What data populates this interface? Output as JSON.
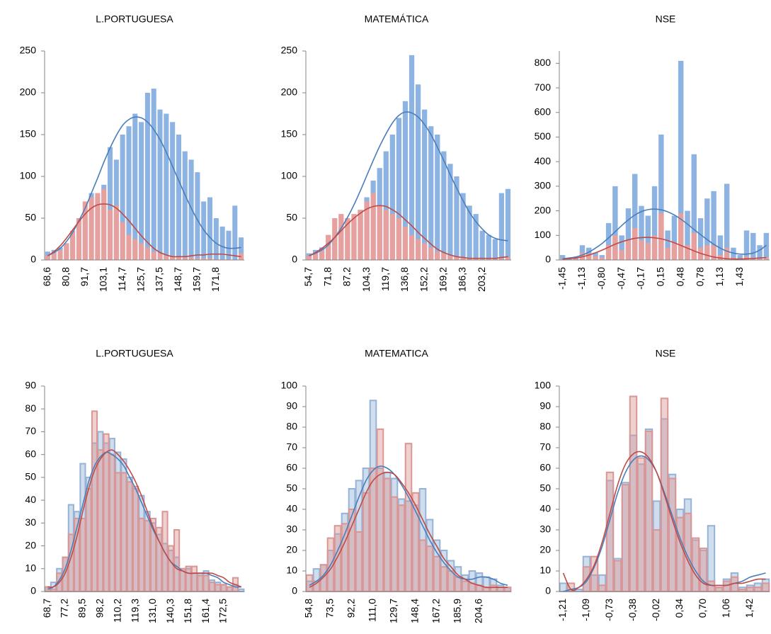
{
  "chart_data": [
    {
      "type": "bar",
      "title": "L.PORTUGUESA",
      "bar_style": "solid",
      "categories": [
        "68,6",
        null,
        null,
        "80,8",
        null,
        null,
        "91,7",
        null,
        null,
        "103,1",
        null,
        null,
        "114,7",
        null,
        null,
        "125,7",
        null,
        null,
        "137,5",
        null,
        null,
        "148,7",
        null,
        null,
        "159,7",
        null,
        null,
        "171,8",
        null,
        null,
        null,
        null
      ],
      "series": [
        {
          "color": "#8db3e2",
          "values": [
            10,
            12,
            15,
            20,
            28,
            40,
            50,
            80,
            75,
            90,
            135,
            120,
            150,
            160,
            175,
            165,
            200,
            205,
            180,
            175,
            165,
            150,
            130,
            120,
            105,
            70,
            75,
            50,
            40,
            35,
            65,
            27
          ]
        },
        {
          "color": "#e6a09e",
          "values": [
            5,
            8,
            12,
            20,
            35,
            50,
            70,
            75,
            80,
            85,
            60,
            65,
            45,
            30,
            25,
            20,
            15,
            10,
            8,
            5,
            5,
            4,
            3,
            3,
            2,
            2,
            2,
            1,
            1,
            1,
            0,
            8
          ]
        }
      ],
      "curves": [
        {
          "color": "#4a7ebb",
          "values": [
            5,
            9,
            14,
            22,
            33,
            47,
            62,
            80,
            98,
            117,
            134,
            149,
            161,
            168,
            171,
            170,
            165,
            156,
            144,
            129,
            112,
            95,
            78,
            62,
            48,
            36,
            27,
            20,
            16,
            14,
            14,
            15
          ]
        },
        {
          "color": "#be4b48",
          "values": [
            5,
            10,
            17,
            26,
            36,
            46,
            55,
            62,
            66,
            67,
            66,
            62,
            55,
            47,
            38,
            29,
            21,
            14,
            9,
            6,
            4,
            4,
            4,
            5,
            6,
            6,
            7,
            7,
            7,
            6,
            5,
            4
          ]
        }
      ],
      "ylim": [
        0,
        250
      ],
      "yticks": [
        0,
        50,
        100,
        150,
        200,
        250
      ]
    },
    {
      "type": "bar",
      "title": "MATEMÁTICA",
      "bar_style": "solid",
      "categories": [
        "54,7",
        null,
        null,
        "71,8",
        null,
        null,
        "87,2",
        null,
        null,
        "104,3",
        null,
        null,
        "119,7",
        null,
        null,
        "136,8",
        null,
        null,
        "152,2",
        null,
        null,
        "169,2",
        null,
        null,
        "186,3",
        null,
        null,
        "203,2",
        null,
        null,
        null,
        null
      ],
      "series": [
        {
          "color": "#8db3e2",
          "values": [
            8,
            12,
            15,
            20,
            28,
            40,
            50,
            45,
            60,
            75,
            95,
            110,
            130,
            150,
            170,
            190,
            245,
            210,
            180,
            160,
            150,
            130,
            115,
            100,
            80,
            65,
            55,
            35,
            30,
            25,
            80,
            85
          ]
        },
        {
          "color": "#e6a09e",
          "values": [
            5,
            8,
            12,
            30,
            50,
            55,
            50,
            55,
            60,
            70,
            80,
            65,
            60,
            55,
            50,
            40,
            30,
            25,
            20,
            15,
            10,
            8,
            5,
            4,
            3,
            2,
            2,
            1,
            1,
            1,
            2,
            3
          ]
        }
      ],
      "curves": [
        {
          "color": "#4a7ebb",
          "values": [
            5,
            8,
            12,
            18,
            27,
            38,
            51,
            66,
            83,
            101,
            119,
            136,
            151,
            164,
            173,
            177,
            176,
            171,
            162,
            150,
            135,
            119,
            102,
            86,
            71,
            57,
            46,
            37,
            30,
            26,
            24,
            23
          ]
        },
        {
          "color": "#be4b48",
          "values": [
            5,
            9,
            14,
            20,
            27,
            35,
            43,
            50,
            56,
            61,
            64,
            65,
            64,
            60,
            55,
            48,
            41,
            33,
            26,
            19,
            13,
            9,
            6,
            4,
            3,
            2,
            2,
            2,
            2,
            2,
            3,
            4
          ]
        }
      ],
      "ylim": [
        0,
        250
      ],
      "yticks": [
        0,
        50,
        100,
        150,
        200,
        250
      ]
    },
    {
      "type": "bar",
      "title": "NSE",
      "bar_style": "solid",
      "categories": [
        "-1,45",
        null,
        null,
        "-1,13",
        null,
        null,
        "-0,80",
        null,
        null,
        "-0,47",
        null,
        null,
        "-0,17",
        null,
        null,
        "0,15",
        null,
        null,
        "0,48",
        null,
        null,
        "0,78",
        null,
        null,
        "1,13",
        null,
        null,
        "1,43",
        null,
        null,
        null,
        null
      ],
      "series": [
        {
          "color": "#8db3e2",
          "values": [
            20,
            5,
            10,
            60,
            50,
            30,
            20,
            150,
            300,
            100,
            210,
            350,
            220,
            180,
            300,
            510,
            120,
            180,
            810,
            200,
            430,
            170,
            250,
            280,
            100,
            310,
            50,
            20,
            120,
            110,
            60,
            110
          ]
        },
        {
          "color": "#e6a09e",
          "values": [
            5,
            2,
            5,
            30,
            25,
            15,
            10,
            60,
            100,
            40,
            80,
            130,
            80,
            70,
            100,
            190,
            50,
            70,
            190,
            60,
            110,
            50,
            60,
            60,
            20,
            50,
            10,
            5,
            15,
            10,
            5,
            10
          ]
        }
      ],
      "curves": [
        {
          "color": "#4a7ebb",
          "values": [
            5,
            8,
            12,
            20,
            32,
            48,
            67,
            90,
            115,
            140,
            163,
            183,
            197,
            205,
            207,
            204,
            196,
            183,
            166,
            146,
            124,
            103,
            83,
            64,
            48,
            36,
            28,
            24,
            24,
            28,
            40,
            60
          ]
        },
        {
          "color": "#be4b48",
          "values": [
            3,
            5,
            8,
            13,
            20,
            29,
            40,
            52,
            64,
            74,
            82,
            88,
            91,
            92,
            90,
            86,
            79,
            70,
            59,
            48,
            37,
            27,
            19,
            12,
            8,
            5,
            4,
            4,
            5,
            6,
            8,
            10
          ]
        }
      ],
      "ylim": [
        0,
        850
      ],
      "yticks": [
        0,
        100,
        200,
        300,
        400,
        500,
        600,
        700,
        800
      ]
    },
    {
      "type": "bar",
      "title": "L.PORTUGUESA",
      "bar_style": "outline",
      "categories": [
        "68,7",
        null,
        null,
        "77,2",
        null,
        null,
        "89,5",
        null,
        null,
        "98,2",
        null,
        null,
        "110,2",
        null,
        null,
        "119,3",
        null,
        null,
        "131,0",
        null,
        null,
        "140,3",
        null,
        null,
        "151,8",
        null,
        null,
        "161,4",
        null,
        null,
        "172,5",
        null,
        null,
        null
      ],
      "series": [
        {
          "color": "#95b3d7",
          "values": [
            2,
            4,
            10,
            15,
            38,
            35,
            56,
            50,
            65,
            70,
            65,
            67,
            61,
            58,
            50,
            45,
            42,
            35,
            30,
            25,
            21,
            18,
            15,
            10,
            10,
            8,
            8,
            9,
            5,
            4,
            3,
            2,
            3,
            1
          ]
        },
        {
          "color": "#d99694",
          "values": [
            2,
            1,
            8,
            15,
            25,
            32,
            32,
            45,
            79,
            62,
            69,
            60,
            52,
            52,
            48,
            46,
            32,
            31,
            32,
            28,
            35,
            20,
            27,
            10,
            11,
            11,
            7,
            7,
            4,
            3,
            3,
            2,
            6,
            0
          ]
        }
      ],
      "curves": [
        {
          "color": "#4a7ebb",
          "values": [
            1,
            2,
            5,
            10,
            18,
            28,
            38,
            48,
            55,
            59,
            61,
            60,
            58,
            55,
            50,
            45,
            39,
            33,
            27,
            22,
            17,
            13,
            11,
            9,
            8,
            8,
            8,
            8,
            7,
            6,
            4,
            3,
            2,
            2
          ]
        },
        {
          "color": "#be4b48",
          "values": [
            2,
            2,
            4,
            8,
            15,
            24,
            35,
            45,
            53,
            58,
            61,
            62,
            60,
            57,
            53,
            48,
            42,
            35,
            28,
            22,
            17,
            13,
            10,
            9,
            8,
            8,
            8,
            8,
            8,
            7,
            6,
            4,
            3,
            2
          ]
        }
      ],
      "ylim": [
        0,
        90
      ],
      "yticks": [
        0,
        10,
        20,
        30,
        40,
        50,
        60,
        70,
        80,
        90
      ]
    },
    {
      "type": "bar",
      "title": "MATEMATICA",
      "bar_style": "outline",
      "categories": [
        "54,8",
        null,
        null,
        "73,5",
        null,
        null,
        "92,2",
        null,
        null,
        "111,0",
        null,
        null,
        "129,7",
        null,
        null,
        "148,4",
        null,
        null,
        "167,2",
        null,
        null,
        "185,9",
        null,
        null,
        "204,6",
        null,
        null,
        null,
        null
      ],
      "series": [
        {
          "color": "#95b3d7",
          "values": [
            5,
            11,
            13,
            20,
            28,
            38,
            50,
            54,
            60,
            93,
            60,
            58,
            55,
            45,
            44,
            42,
            50,
            35,
            25,
            20,
            15,
            12,
            8,
            10,
            9,
            7,
            6,
            3,
            2
          ]
        },
        {
          "color": "#d99694",
          "values": [
            8,
            5,
            13,
            26,
            32,
            33,
            40,
            29,
            48,
            60,
            79,
            55,
            46,
            42,
            72,
            48,
            25,
            22,
            17,
            12,
            10,
            7,
            5,
            4,
            3,
            2,
            3,
            2,
            2
          ]
        }
      ],
      "curves": [
        {
          "color": "#4a7ebb",
          "values": [
            3,
            5,
            8,
            13,
            20,
            28,
            37,
            46,
            54,
            59,
            61,
            60,
            57,
            52,
            46,
            39,
            32,
            25,
            19,
            14,
            10,
            7,
            6,
            6,
            7,
            7,
            6,
            4,
            3
          ]
        },
        {
          "color": "#be4b48",
          "values": [
            2,
            4,
            7,
            11,
            17,
            24,
            32,
            40,
            48,
            54,
            57,
            58,
            57,
            53,
            48,
            42,
            35,
            28,
            22,
            16,
            12,
            8,
            6,
            4,
            3,
            2,
            2,
            2,
            2
          ]
        }
      ],
      "ylim": [
        0,
        100
      ],
      "yticks": [
        0,
        10,
        20,
        30,
        40,
        50,
        60,
        70,
        80,
        90,
        100
      ]
    },
    {
      "type": "bar",
      "title": "NSE",
      "bar_style": "outline",
      "categories": [
        "-1,21",
        null,
        null,
        "-1,09",
        null,
        null,
        "-0,73",
        null,
        null,
        "-0,38",
        null,
        null,
        "-0,02",
        null,
        null,
        "0,34",
        null,
        null,
        "0,70",
        null,
        null,
        "1,06",
        null,
        null,
        "1,42",
        null,
        null
      ],
      "series": [
        {
          "color": "#95b3d7",
          "values": [
            4,
            1,
            1,
            17,
            8,
            8,
            54,
            16,
            53,
            76,
            62,
            79,
            44,
            84,
            57,
            40,
            45,
            25,
            20,
            32,
            2,
            6,
            9,
            2,
            3,
            4,
            6
          ]
        },
        {
          "color": "#d99694",
          "values": [
            0,
            4,
            0,
            12,
            17,
            3,
            58,
            15,
            52,
            95,
            65,
            78,
            30,
            94,
            55,
            36,
            38,
            26,
            21,
            5,
            2,
            5,
            7,
            1,
            2,
            2,
            4
          ]
        }
      ],
      "curves": [
        {
          "color": "#4a7ebb",
          "values": [
            0,
            1,
            2,
            5,
            12,
            22,
            35,
            48,
            58,
            64,
            66,
            64,
            58,
            48,
            37,
            26,
            17,
            10,
            5,
            3,
            3,
            3,
            4,
            5,
            7,
            8,
            9
          ]
        },
        {
          "color": "#be4b48",
          "values": [
            9,
            1,
            2,
            6,
            13,
            24,
            38,
            52,
            62,
            67,
            68,
            65,
            58,
            47,
            35,
            24,
            15,
            8,
            4,
            3,
            3,
            3,
            4,
            4,
            5,
            6,
            6
          ]
        }
      ],
      "ylim": [
        0,
        100
      ],
      "yticks": [
        0,
        10,
        20,
        30,
        40,
        50,
        60,
        70,
        80,
        90,
        100
      ]
    }
  ]
}
